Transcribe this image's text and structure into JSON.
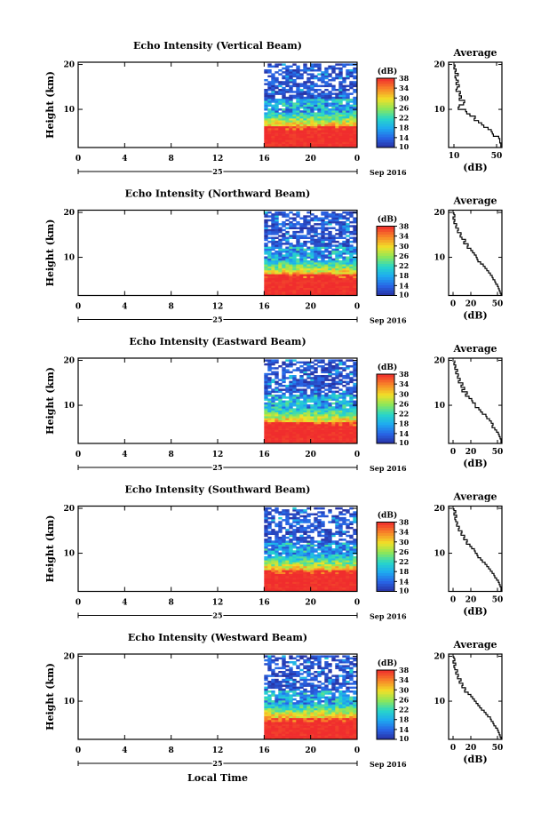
{
  "chart_data": {
    "type": "heatmap",
    "x_axis_label": "Local Time",
    "date_label": "Sep 2016",
    "day_label": "25",
    "x_ticks": [
      "0",
      "4",
      "8",
      "12",
      "16",
      "20",
      "0"
    ],
    "xlim": [
      0,
      24
    ],
    "data_start_hour": 16,
    "ylabel": "Height (km)",
    "y_ticks": [
      "10",
      "20"
    ],
    "ylim": [
      1.5,
      20.5
    ],
    "colorbar": {
      "unit_label": "(dB)",
      "ticks": [
        "10",
        "14",
        "18",
        "22",
        "26",
        "30",
        "34",
        "38"
      ],
      "range": [
        10,
        38
      ]
    },
    "profile": {
      "title": "Average",
      "xlabel": "(dB)",
      "y_ticks": [
        "10",
        "20"
      ],
      "ylim": [
        1.5,
        20.5
      ]
    },
    "panels": [
      {
        "title": "Echo Intensity (Vertical Beam)",
        "profile_x_ticks": [
          "10",
          "50"
        ],
        "profile_xlim": [
          5,
          55
        ],
        "profile": [
          [
            20,
            11
          ],
          [
            19.5,
            10
          ],
          [
            19,
            12
          ],
          [
            18.5,
            11
          ],
          [
            18,
            14
          ],
          [
            17.5,
            11
          ],
          [
            17,
            12
          ],
          [
            16.5,
            14
          ],
          [
            16,
            12
          ],
          [
            15.5,
            15
          ],
          [
            15,
            13
          ],
          [
            14.5,
            12
          ],
          [
            14,
            16
          ],
          [
            13.5,
            15
          ],
          [
            13,
            17
          ],
          [
            12.5,
            15
          ],
          [
            12,
            20
          ],
          [
            11.5,
            19
          ],
          [
            11,
            15
          ],
          [
            10.5,
            14
          ],
          [
            10,
            21
          ],
          [
            9.5,
            22
          ],
          [
            9,
            25
          ],
          [
            8.5,
            30
          ],
          [
            8,
            29
          ],
          [
            7.5,
            33
          ],
          [
            7,
            36
          ],
          [
            6.5,
            38
          ],
          [
            6,
            42
          ],
          [
            5.5,
            45
          ],
          [
            5,
            46
          ],
          [
            4.5,
            47
          ],
          [
            4,
            52
          ],
          [
            3.5,
            53
          ],
          [
            3,
            53
          ],
          [
            2.5,
            54
          ],
          [
            2,
            54
          ]
        ]
      },
      {
        "title": "Echo Intensity (Northward Beam)",
        "profile_x_ticks": [
          "0",
          "20",
          "50"
        ],
        "profile_xlim": [
          -5,
          55
        ],
        "profile": [
          [
            20,
            1
          ],
          [
            19.5,
            2
          ],
          [
            19,
            0
          ],
          [
            18.5,
            2
          ],
          [
            18,
            1
          ],
          [
            17.5,
            4
          ],
          [
            17,
            3
          ],
          [
            16.5,
            6
          ],
          [
            16,
            5
          ],
          [
            15.5,
            9
          ],
          [
            15,
            8
          ],
          [
            14.5,
            10
          ],
          [
            14,
            14
          ],
          [
            13.5,
            12
          ],
          [
            13,
            17
          ],
          [
            12.5,
            16
          ],
          [
            12,
            20
          ],
          [
            11.5,
            22
          ],
          [
            11,
            24
          ],
          [
            10.5,
            26
          ],
          [
            10,
            27
          ],
          [
            9.5,
            28
          ],
          [
            9,
            31
          ],
          [
            8.5,
            34
          ],
          [
            8,
            36
          ],
          [
            7.5,
            38
          ],
          [
            7,
            40
          ],
          [
            6.5,
            42
          ],
          [
            6,
            44
          ],
          [
            5.5,
            45
          ],
          [
            5,
            47
          ],
          [
            4.5,
            48
          ],
          [
            4,
            50
          ],
          [
            3.5,
            51
          ],
          [
            3,
            52
          ],
          [
            2.5,
            53
          ],
          [
            2,
            54
          ]
        ]
      },
      {
        "title": "Echo Intensity (Eastward Beam)",
        "profile_x_ticks": [
          "0",
          "20",
          "50"
        ],
        "profile_xlim": [
          -5,
          55
        ],
        "profile": [
          [
            20,
            2
          ],
          [
            19.5,
            1
          ],
          [
            19,
            3
          ],
          [
            18.5,
            2
          ],
          [
            18,
            5
          ],
          [
            17.5,
            3
          ],
          [
            17,
            6
          ],
          [
            16.5,
            5
          ],
          [
            16,
            8
          ],
          [
            15.5,
            6
          ],
          [
            15,
            11
          ],
          [
            14.5,
            9
          ],
          [
            14,
            13
          ],
          [
            13.5,
            10
          ],
          [
            13,
            16
          ],
          [
            12.5,
            14
          ],
          [
            12,
            18
          ],
          [
            11.5,
            21
          ],
          [
            11,
            22
          ],
          [
            10.5,
            25
          ],
          [
            10,
            25
          ],
          [
            9.5,
            29
          ],
          [
            9,
            31
          ],
          [
            8.5,
            33
          ],
          [
            8,
            37
          ],
          [
            7.5,
            38
          ],
          [
            7,
            41
          ],
          [
            6.5,
            43
          ],
          [
            6,
            45
          ],
          [
            5.5,
            44
          ],
          [
            5,
            47
          ],
          [
            4.5,
            49
          ],
          [
            4,
            51
          ],
          [
            3.5,
            52
          ],
          [
            3,
            53
          ],
          [
            2.5,
            54
          ],
          [
            2,
            54
          ]
        ]
      },
      {
        "title": "Echo Intensity (Southward Beam)",
        "profile_x_ticks": [
          "0",
          "20",
          "50"
        ],
        "profile_xlim": [
          -5,
          55
        ],
        "profile": [
          [
            20,
            1
          ],
          [
            19.5,
            3
          ],
          [
            19,
            1
          ],
          [
            18.5,
            4
          ],
          [
            18,
            2
          ],
          [
            17.5,
            3
          ],
          [
            17,
            5
          ],
          [
            16.5,
            4
          ],
          [
            16,
            7
          ],
          [
            15.5,
            6
          ],
          [
            15,
            10
          ],
          [
            14.5,
            9
          ],
          [
            14,
            13
          ],
          [
            13.5,
            12
          ],
          [
            13,
            16
          ],
          [
            12.5,
            15
          ],
          [
            12,
            19
          ],
          [
            11.5,
            21
          ],
          [
            11,
            24
          ],
          [
            10.5,
            25
          ],
          [
            10,
            27
          ],
          [
            9.5,
            28
          ],
          [
            9,
            31
          ],
          [
            8.5,
            33
          ],
          [
            8,
            36
          ],
          [
            7.5,
            38
          ],
          [
            7,
            40
          ],
          [
            6.5,
            42
          ],
          [
            6,
            44
          ],
          [
            5.5,
            46
          ],
          [
            5,
            47
          ],
          [
            4.5,
            49
          ],
          [
            4,
            51
          ],
          [
            3.5,
            52
          ],
          [
            3,
            53
          ],
          [
            2.5,
            54
          ],
          [
            2,
            54
          ]
        ]
      },
      {
        "title": "Echo Intensity (Westward Beam)",
        "profile_x_ticks": [
          "0",
          "20",
          "50"
        ],
        "profile_xlim": [
          -5,
          55
        ],
        "profile": [
          [
            20,
            1
          ],
          [
            19.5,
            2
          ],
          [
            19,
            0
          ],
          [
            18.5,
            3
          ],
          [
            18,
            1
          ],
          [
            17.5,
            2
          ],
          [
            17,
            5
          ],
          [
            16.5,
            3
          ],
          [
            16,
            6
          ],
          [
            15.5,
            5
          ],
          [
            15,
            9
          ],
          [
            14.5,
            7
          ],
          [
            14,
            11
          ],
          [
            13.5,
            10
          ],
          [
            13,
            14
          ],
          [
            12.5,
            13
          ],
          [
            12,
            17
          ],
          [
            11.5,
            20
          ],
          [
            11,
            22
          ],
          [
            10.5,
            24
          ],
          [
            10,
            26
          ],
          [
            9.5,
            28
          ],
          [
            9,
            30
          ],
          [
            8.5,
            32
          ],
          [
            8,
            35
          ],
          [
            7.5,
            37
          ],
          [
            7,
            39
          ],
          [
            6.5,
            42
          ],
          [
            6,
            43
          ],
          [
            5.5,
            45
          ],
          [
            5,
            46
          ],
          [
            4.5,
            48
          ],
          [
            4,
            50
          ],
          [
            3.5,
            51
          ],
          [
            3,
            52
          ],
          [
            2.5,
            53
          ],
          [
            2,
            54
          ]
        ]
      }
    ]
  }
}
